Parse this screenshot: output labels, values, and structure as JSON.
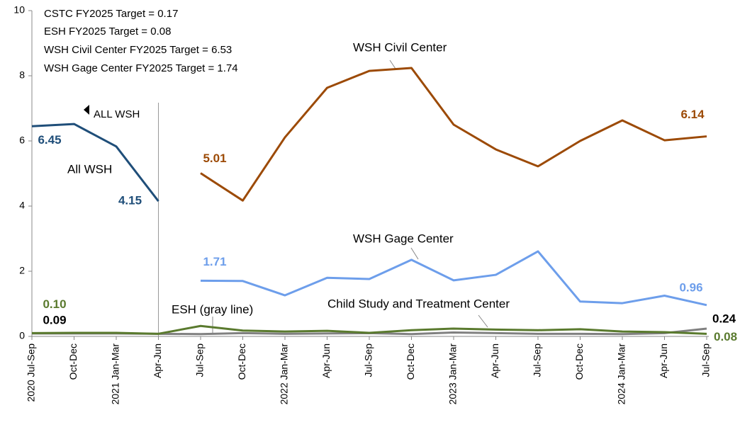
{
  "chart_data": {
    "type": "line",
    "categories": [
      "2020 Jul-Sep",
      "Oct-Dec",
      "2021 Jan-Mar",
      "Apr-Jun",
      "Jul-Sep",
      "Oct-Dec",
      "2022 Jan-Mar",
      "Apr-Jun",
      "Jul-Sep",
      "Oct-Dec",
      "2023 Jan-Mar",
      "Apr-Jun",
      "Jul-Sep",
      "Oct-Dec",
      "2024 Jan-Mar",
      "Apr-Jun",
      "Jul-Sep"
    ],
    "ylim": [
      0,
      10
    ],
    "yticks": [
      0,
      2,
      4,
      6,
      8,
      10
    ],
    "grid": false,
    "series": [
      {
        "name": "All WSH",
        "color": "#1f4e79",
        "values": [
          6.45,
          6.52,
          5.83,
          4.15,
          null,
          null,
          null,
          null,
          null,
          null,
          null,
          null,
          null,
          null,
          null,
          null,
          null
        ],
        "value_labels": [
          "6.45",
          null,
          null,
          "4.15",
          null,
          null,
          null,
          null,
          null,
          null,
          null,
          null,
          null,
          null,
          null,
          null,
          null
        ]
      },
      {
        "name": "WSH Civil Center",
        "color": "#9c4a06",
        "values": [
          null,
          null,
          null,
          null,
          5.01,
          4.17,
          6.11,
          7.63,
          8.15,
          8.24,
          6.5,
          5.74,
          5.22,
          6.0,
          6.63,
          6.02,
          6.14
        ],
        "value_labels": [
          null,
          null,
          null,
          null,
          "5.01",
          null,
          null,
          null,
          null,
          null,
          null,
          null,
          null,
          null,
          null,
          null,
          "6.14"
        ]
      },
      {
        "name": "WSH Gage Center",
        "color": "#6d9eeb",
        "values": [
          null,
          null,
          null,
          null,
          1.71,
          1.7,
          1.26,
          1.8,
          1.76,
          2.35,
          1.72,
          1.89,
          2.61,
          1.07,
          1.02,
          1.25,
          0.96
        ],
        "value_labels": [
          null,
          null,
          null,
          null,
          "1.71",
          null,
          null,
          null,
          null,
          null,
          null,
          null,
          null,
          null,
          null,
          null,
          "0.96"
        ]
      },
      {
        "name": "Child Study and Treatment Center",
        "color": "#5a7a2e",
        "values": [
          0.1,
          0.11,
          0.11,
          0.08,
          0.32,
          0.18,
          0.15,
          0.17,
          0.11,
          0.19,
          0.24,
          0.21,
          0.19,
          0.22,
          0.15,
          0.13,
          0.08
        ],
        "value_labels": [
          "0.10",
          null,
          null,
          null,
          null,
          null,
          null,
          null,
          null,
          null,
          null,
          null,
          null,
          null,
          null,
          null,
          "0.08"
        ]
      },
      {
        "name": "ESH (gray line)",
        "color": "#808080",
        "values": [
          0.09,
          0.09,
          0.09,
          0.08,
          0.07,
          0.1,
          0.08,
          0.09,
          0.1,
          0.07,
          0.12,
          0.1,
          0.08,
          0.08,
          0.07,
          0.1,
          0.24
        ],
        "value_labels": [
          "0.09",
          null,
          null,
          null,
          null,
          null,
          null,
          null,
          null,
          null,
          null,
          null,
          null,
          null,
          null,
          null,
          "0.24"
        ]
      }
    ],
    "annotations": [
      "CSTC FY2025 Target = 0.17",
      "ESH FY2025 Target = 0.08",
      "WSH Civil Center FY2025 Target = 6.53",
      "WSH Gage Center FY2025 Target = 1.74",
      "ALL WSH"
    ]
  }
}
